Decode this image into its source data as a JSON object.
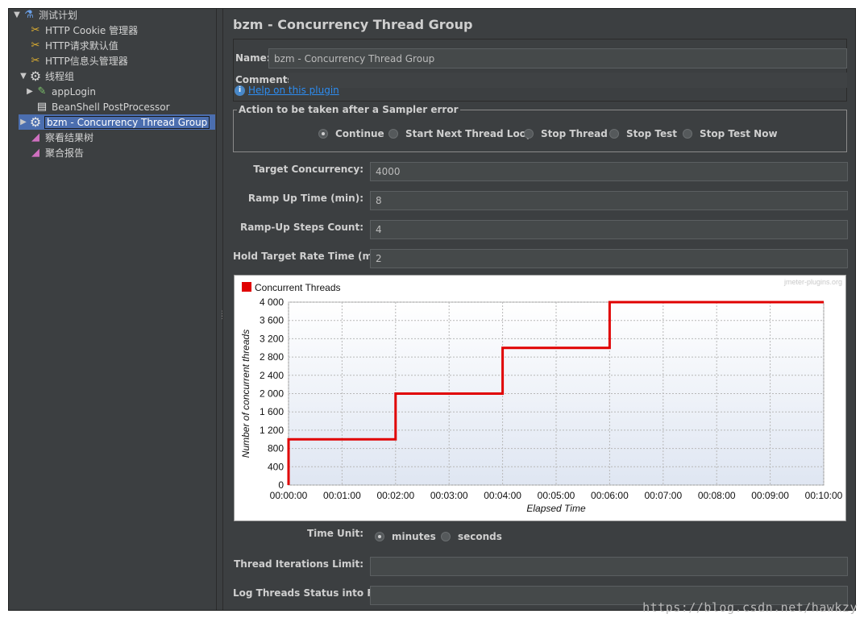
{
  "tree": {
    "items": [
      {
        "label": "测试计划",
        "icon": "test-plan-icon"
      },
      {
        "label": "HTTP Cookie 管理器",
        "icon": "wrench-icon"
      },
      {
        "label": "HTTP请求默认值",
        "icon": "wrench-icon"
      },
      {
        "label": "HTTP信息头管理器",
        "icon": "wrench-icon"
      },
      {
        "label": "线程组",
        "icon": "gear-icon"
      },
      {
        "label": "appLogin",
        "icon": "pipette-icon"
      },
      {
        "label": "BeanShell PostProcessor",
        "icon": "script-icon"
      },
      {
        "label": "bzm - Concurrency Thread Group",
        "icon": "gear-icon"
      },
      {
        "label": "察看结果树",
        "icon": "graph-icon"
      },
      {
        "label": "聚合报告",
        "icon": "graph-icon"
      }
    ]
  },
  "panel": {
    "title": "bzm - Concurrency Thread Group",
    "name_label": "Name:",
    "name_value": "bzm - Concurrency Thread Group",
    "comments_label": "Comments:",
    "help_link": "Help on this plugin",
    "error_action": {
      "legend": "Action to be taken after a Sampler error",
      "options": [
        "Continue",
        "Start Next Thread Loop",
        "Stop Thread",
        "Stop Test",
        "Stop Test Now"
      ],
      "selected": "Continue"
    },
    "target_concurrency_label": "Target Concurrency:",
    "target_concurrency": "4000",
    "ramp_up_label": "Ramp Up Time (min):",
    "ramp_up": "8",
    "steps_label": "Ramp-Up Steps Count:",
    "steps": "4",
    "hold_label": "Hold Target Rate Time (min):",
    "hold": "2",
    "time_unit_label": "Time Unit:",
    "time_unit_options": [
      "minutes",
      "seconds"
    ],
    "time_unit_selected": "minutes",
    "iterations_label": "Thread Iterations Limit:",
    "iterations": "",
    "log_label": "Log Threads Status into File:",
    "log_file": ""
  },
  "chart_data": {
    "type": "line",
    "legend": "Concurrent Threads",
    "credit": "jmeter-plugins.org",
    "xlabel": "Elapsed Time",
    "ylabel": "Number of concurrent threads",
    "x_ticks": [
      "00:00:00",
      "00:01:00",
      "00:02:00",
      "00:03:00",
      "00:04:00",
      "00:05:00",
      "00:06:00",
      "00:07:00",
      "00:08:00",
      "00:09:00",
      "00:10:00"
    ],
    "y_ticks": [
      "0",
      "400",
      "800",
      "1 200",
      "1 600",
      "2 000",
      "2 400",
      "2 800",
      "3 200",
      "3 600",
      "4 000"
    ],
    "xlim": [
      0,
      10
    ],
    "ylim": [
      0,
      4000
    ],
    "series": [
      {
        "name": "Concurrent Threads",
        "color": "#e00000",
        "x": [
          0,
          0,
          2,
          2,
          4,
          4,
          6,
          6,
          10
        ],
        "y": [
          0,
          1000,
          1000,
          2000,
          2000,
          3000,
          3000,
          4000,
          4000
        ]
      }
    ]
  },
  "watermark": "https://blog.csdn.net/hawkzy"
}
